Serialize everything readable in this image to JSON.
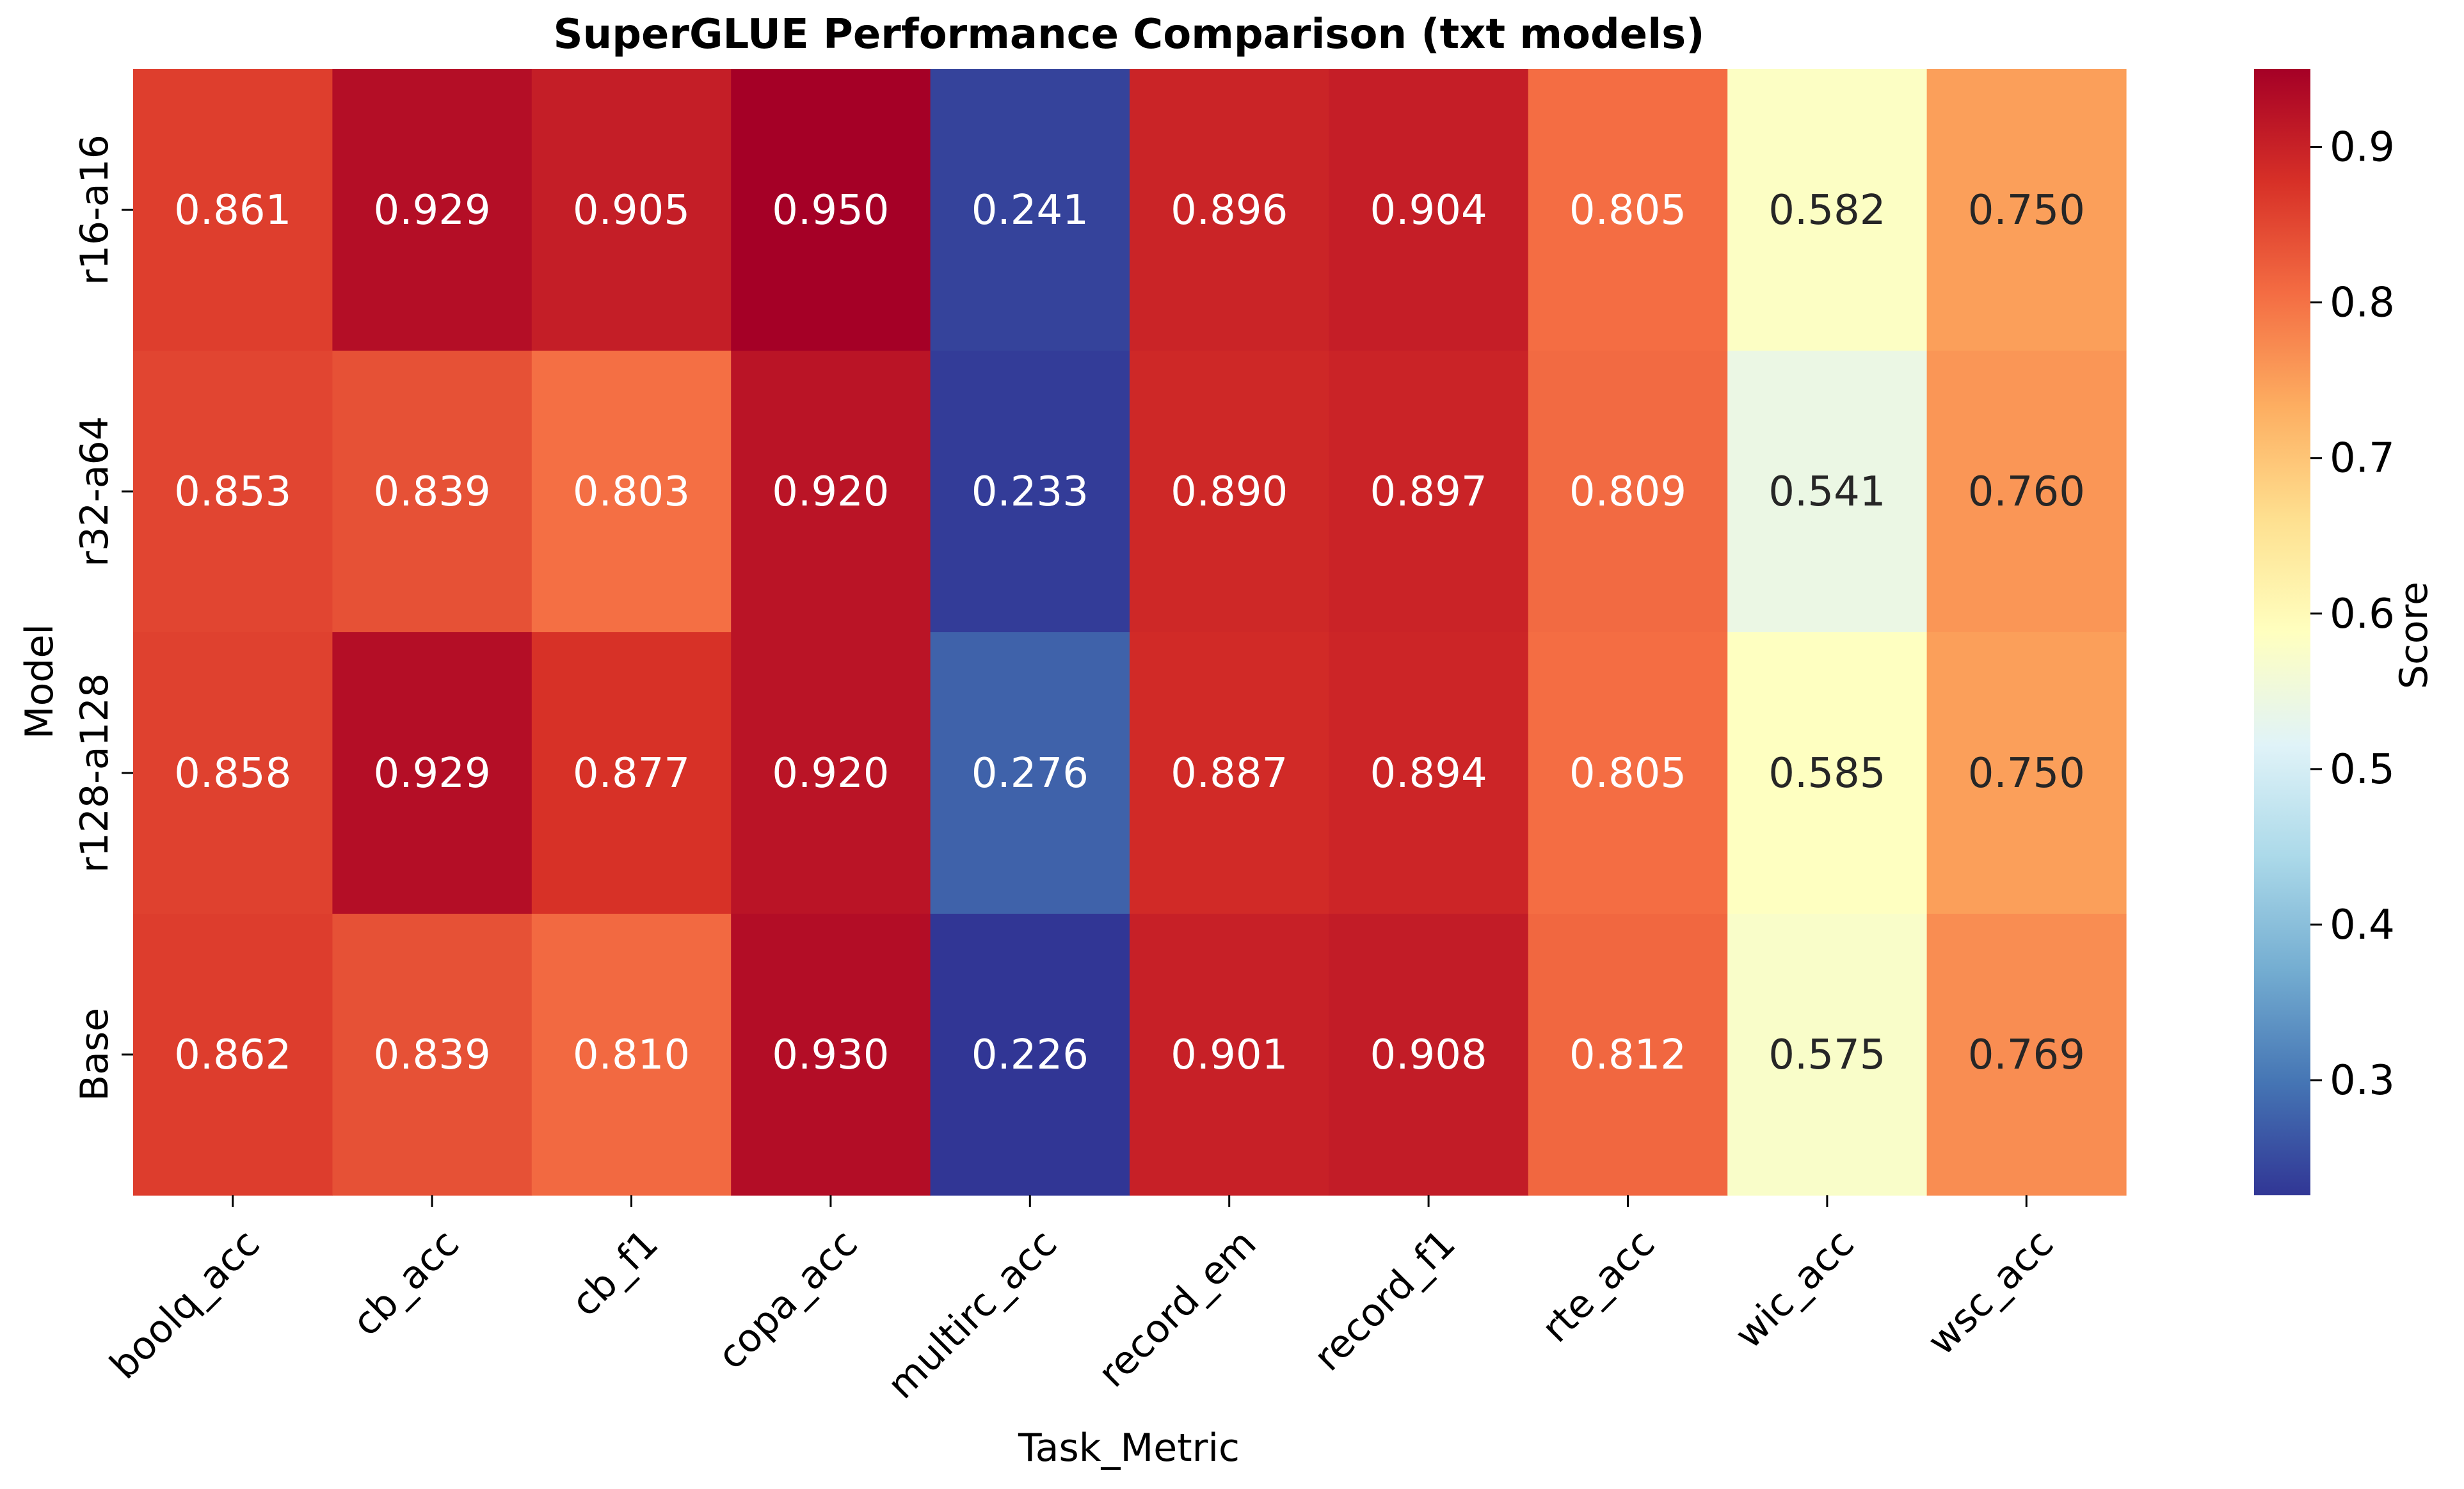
{
  "chart_data": {
    "type": "heatmap",
    "title": "SuperGLUE Performance Comparison (txt models)",
    "xlabel": "Task_Metric",
    "ylabel": "Model",
    "colorbar_label": "Score",
    "colormap": "RdYlBu_r",
    "vmin": 0.226,
    "vmax": 0.95,
    "colorbar_ticks": [
      0.3,
      0.4,
      0.5,
      0.6,
      0.7,
      0.8,
      0.9
    ],
    "colorbar_tick_labels": [
      "0.3",
      "0.4",
      "0.5",
      "0.6",
      "0.7",
      "0.8",
      "0.9"
    ],
    "columns": [
      "boolq_acc",
      "cb_acc",
      "cb_f1",
      "copa_acc",
      "multirc_acc",
      "record_em",
      "record_f1",
      "rte_acc",
      "wic_acc",
      "wsc_acc"
    ],
    "rows": [
      "r16-a16",
      "r32-a64",
      "r128-a128",
      "Base"
    ],
    "values": [
      [
        0.861,
        0.929,
        0.905,
        0.95,
        0.241,
        0.896,
        0.904,
        0.805,
        0.582,
        0.75
      ],
      [
        0.853,
        0.839,
        0.803,
        0.92,
        0.233,
        0.89,
        0.897,
        0.809,
        0.541,
        0.76
      ],
      [
        0.858,
        0.929,
        0.877,
        0.92,
        0.276,
        0.887,
        0.894,
        0.805,
        0.585,
        0.75
      ],
      [
        0.862,
        0.839,
        0.81,
        0.93,
        0.226,
        0.901,
        0.908,
        0.812,
        0.575,
        0.769
      ]
    ],
    "value_labels": [
      [
        "0.861",
        "0.929",
        "0.905",
        "0.950",
        "0.241",
        "0.896",
        "0.904",
        "0.805",
        "0.582",
        "0.750"
      ],
      [
        "0.853",
        "0.839",
        "0.803",
        "0.920",
        "0.233",
        "0.890",
        "0.897",
        "0.809",
        "0.541",
        "0.760"
      ],
      [
        "0.858",
        "0.929",
        "0.877",
        "0.920",
        "0.276",
        "0.887",
        "0.894",
        "0.805",
        "0.585",
        "0.750"
      ],
      [
        "0.862",
        "0.839",
        "0.810",
        "0.930",
        "0.226",
        "0.901",
        "0.908",
        "0.812",
        "0.575",
        "0.769"
      ]
    ],
    "grid": false
  }
}
